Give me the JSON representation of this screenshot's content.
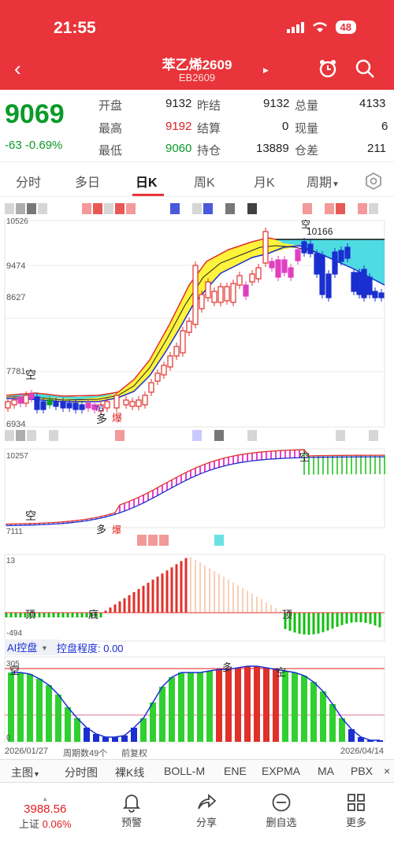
{
  "status": {
    "time": "21:55",
    "battery": "48"
  },
  "header": {
    "title": "苯乙烯2609",
    "code": "EB2609"
  },
  "quote": {
    "price": "9069",
    "change": "-63",
    "change_pct": "-0.69%",
    "fields": [
      {
        "label": "开盘",
        "value": "9132"
      },
      {
        "label": "昨结",
        "value": "9132"
      },
      {
        "label": "总量",
        "value": "4133"
      },
      {
        "label": "最高",
        "value": "9192"
      },
      {
        "label": "结算",
        "value": "0"
      },
      {
        "label": "现量",
        "value": "6"
      },
      {
        "label": "最低",
        "value": "9060"
      },
      {
        "label": "持仓",
        "value": "13889"
      },
      {
        "label": "仓差",
        "value": "211"
      }
    ]
  },
  "tabs": [
    "分时",
    "多日",
    "日K",
    "周K",
    "月K",
    "周期"
  ],
  "colors": {
    "brand_red": "#e8343a",
    "down_green": "#0a9a2a",
    "up_red": "#e02020",
    "fall_blue": "#1a2fd0"
  },
  "chart": {
    "main_axis": [
      "10526",
      "9474",
      "8627",
      "7781",
      "6934"
    ],
    "main_marks": {
      "high_label": "10166",
      "short1": "空",
      "short2": "空",
      "long": "多",
      "burst": "爆",
      "mid": "76"
    },
    "macd_axis": [
      "10257",
      "7111"
    ],
    "macd_marks": {
      "short1": "空",
      "short2": "空",
      "long": "多",
      "burst": "爆"
    },
    "osc_axis": [
      "13",
      "-494"
    ],
    "osc_marks": {
      "top1": "顶",
      "bottom": "底",
      "top2": "顶"
    },
    "ai": {
      "label": "AI控盘",
      "degree": "控盘程度: 0.00",
      "top": "305",
      "bottom": "0",
      "mark_short1": "空",
      "mark_long": "多",
      "mark_short2": "空"
    }
  },
  "period": {
    "start": "2026/01/27",
    "count": "周期数49个",
    "adjust": "前复权",
    "end": "2026/04/14"
  },
  "toolbar": [
    "主图",
    "分时图",
    "裸K线",
    "BOLL-M",
    "ENE",
    "EXPMA",
    "MA",
    "PBX"
  ],
  "nav": {
    "index_value": "3988.56",
    "index_name": "上证",
    "index_pct": "0.06%",
    "items": [
      "预警",
      "分享",
      "删自选",
      "更多"
    ]
  }
}
